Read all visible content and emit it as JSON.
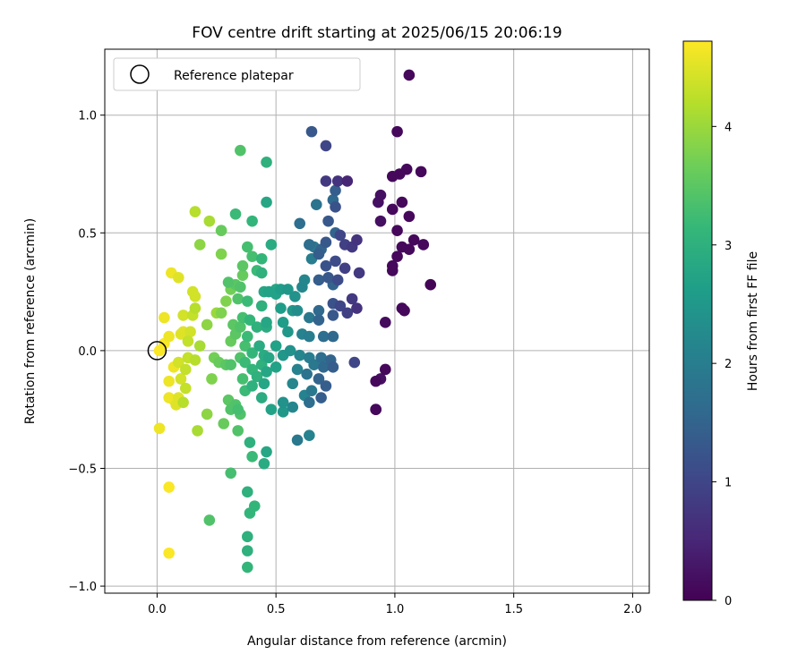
{
  "chart_data": {
    "type": "scatter",
    "title": "FOV centre drift starting at 2025/06/15 20:06:19",
    "xlabel": "Angular distance from reference (arcmin)",
    "ylabel": "Rotation from reference (arcmin)",
    "xlim": [
      -0.22,
      2.07
    ],
    "ylim": [
      -1.03,
      1.28
    ],
    "xticks": [
      0.0,
      0.5,
      1.0,
      1.5,
      2.0
    ],
    "xtick_labels": [
      "0.0",
      "0.5",
      "1.0",
      "1.5",
      "2.0"
    ],
    "yticks": [
      -1.0,
      -0.5,
      0.0,
      0.5,
      1.0
    ],
    "ytick_labels": [
      "−1.0",
      "−0.5",
      "0.0",
      "0.5",
      "1.0"
    ],
    "grid": true,
    "legend": {
      "position": "top-left",
      "entries": [
        "Reference platepar"
      ]
    },
    "reference_point": {
      "x": 0.0,
      "y": 0.0
    },
    "colorbar": {
      "label": "Hours from first FF file",
      "range": [
        0,
        4.72
      ],
      "ticks": [
        0,
        1,
        2,
        3,
        4
      ],
      "tick_labels": [
        "0",
        "1",
        "2",
        "3",
        "4"
      ],
      "colormap": "viridis"
    },
    "colors": {
      "grid": "#b0b0b0",
      "viridis": [
        "#440154",
        "#482878",
        "#3e4989",
        "#31688e",
        "#26828e",
        "#1f9e89",
        "#35b779",
        "#6ece58",
        "#b5de2b",
        "#fde725"
      ]
    },
    "points": [
      {
        "x": 1.06,
        "y": 1.17,
        "t": 0.1
      },
      {
        "x": 1.01,
        "y": 0.93,
        "t": 0.1
      },
      {
        "x": 1.11,
        "y": 0.76,
        "t": 0.1
      },
      {
        "x": 1.05,
        "y": 0.77,
        "t": 0.1
      },
      {
        "x": 1.02,
        "y": 0.75,
        "t": 0.1
      },
      {
        "x": 0.99,
        "y": 0.74,
        "t": 0.1
      },
      {
        "x": 0.94,
        "y": 0.66,
        "t": 0.2
      },
      {
        "x": 0.93,
        "y": 0.63,
        "t": 0.2
      },
      {
        "x": 1.03,
        "y": 0.63,
        "t": 0.1
      },
      {
        "x": 0.99,
        "y": 0.6,
        "t": 0.1
      },
      {
        "x": 1.06,
        "y": 0.57,
        "t": 0.1
      },
      {
        "x": 0.94,
        "y": 0.55,
        "t": 0.2
      },
      {
        "x": 1.01,
        "y": 0.51,
        "t": 0.1
      },
      {
        "x": 1.08,
        "y": 0.47,
        "t": 0.1
      },
      {
        "x": 1.12,
        "y": 0.45,
        "t": 0.1
      },
      {
        "x": 1.03,
        "y": 0.44,
        "t": 0.1
      },
      {
        "x": 1.06,
        "y": 0.43,
        "t": 0.1
      },
      {
        "x": 1.01,
        "y": 0.4,
        "t": 0.1
      },
      {
        "x": 0.99,
        "y": 0.36,
        "t": 0.1
      },
      {
        "x": 0.99,
        "y": 0.34,
        "t": 0.1
      },
      {
        "x": 1.15,
        "y": 0.28,
        "t": 0.05
      },
      {
        "x": 1.03,
        "y": 0.18,
        "t": 0.1
      },
      {
        "x": 1.04,
        "y": 0.17,
        "t": 0.1
      },
      {
        "x": 0.96,
        "y": 0.12,
        "t": 0.15
      },
      {
        "x": 0.96,
        "y": -0.08,
        "t": 0.1
      },
      {
        "x": 0.94,
        "y": -0.12,
        "t": 0.2
      },
      {
        "x": 0.92,
        "y": -0.13,
        "t": 0.1
      },
      {
        "x": 0.92,
        "y": -0.25,
        "t": 0.1
      },
      {
        "x": 0.92,
        "y": -0.25,
        "t": 0.1
      },
      {
        "x": 0.65,
        "y": 0.93,
        "t": 1.3
      },
      {
        "x": 0.71,
        "y": 0.87,
        "t": 1.0
      },
      {
        "x": 0.71,
        "y": 0.72,
        "t": 0.8
      },
      {
        "x": 0.76,
        "y": 0.72,
        "t": 0.7
      },
      {
        "x": 0.8,
        "y": 0.72,
        "t": 0.5
      },
      {
        "x": 0.75,
        "y": 0.68,
        "t": 1.4
      },
      {
        "x": 0.74,
        "y": 0.64,
        "t": 1.6
      },
      {
        "x": 0.67,
        "y": 0.62,
        "t": 1.8
      },
      {
        "x": 0.75,
        "y": 0.61,
        "t": 1.2
      },
      {
        "x": 0.6,
        "y": 0.54,
        "t": 1.7
      },
      {
        "x": 0.72,
        "y": 0.55,
        "t": 1.3
      },
      {
        "x": 0.77,
        "y": 0.49,
        "t": 1.0
      },
      {
        "x": 0.75,
        "y": 0.5,
        "t": 1.5
      },
      {
        "x": 0.84,
        "y": 0.47,
        "t": 0.7
      },
      {
        "x": 0.79,
        "y": 0.45,
        "t": 0.9
      },
      {
        "x": 0.82,
        "y": 0.44,
        "t": 0.8
      },
      {
        "x": 0.64,
        "y": 0.45,
        "t": 1.7
      },
      {
        "x": 0.66,
        "y": 0.44,
        "t": 1.9
      },
      {
        "x": 0.69,
        "y": 0.43,
        "t": 1.5
      },
      {
        "x": 0.71,
        "y": 0.46,
        "t": 1.3
      },
      {
        "x": 0.68,
        "y": 0.41,
        "t": 1.4
      },
      {
        "x": 0.65,
        "y": 0.39,
        "t": 2.0
      },
      {
        "x": 0.75,
        "y": 0.38,
        "t": 1.1
      },
      {
        "x": 0.71,
        "y": 0.36,
        "t": 1.2
      },
      {
        "x": 0.79,
        "y": 0.35,
        "t": 0.9
      },
      {
        "x": 0.85,
        "y": 0.33,
        "t": 0.8
      },
      {
        "x": 0.68,
        "y": 0.3,
        "t": 1.4
      },
      {
        "x": 0.72,
        "y": 0.31,
        "t": 1.3
      },
      {
        "x": 0.76,
        "y": 0.3,
        "t": 1.1
      },
      {
        "x": 0.74,
        "y": 0.28,
        "t": 1.5
      },
      {
        "x": 0.61,
        "y": 0.27,
        "t": 2.2
      },
      {
        "x": 0.82,
        "y": 0.22,
        "t": 0.8
      },
      {
        "x": 0.74,
        "y": 0.2,
        "t": 1.2
      },
      {
        "x": 0.77,
        "y": 0.19,
        "t": 1.0
      },
      {
        "x": 0.84,
        "y": 0.18,
        "t": 0.7
      },
      {
        "x": 0.8,
        "y": 0.16,
        "t": 0.9
      },
      {
        "x": 0.68,
        "y": 0.17,
        "t": 1.6
      },
      {
        "x": 0.74,
        "y": 0.15,
        "t": 1.3
      },
      {
        "x": 0.59,
        "y": 0.17,
        "t": 2.3
      },
      {
        "x": 0.64,
        "y": 0.14,
        "t": 1.9
      },
      {
        "x": 0.68,
        "y": 0.13,
        "t": 1.5
      },
      {
        "x": 0.61,
        "y": 0.07,
        "t": 2.1
      },
      {
        "x": 0.64,
        "y": 0.06,
        "t": 2.0
      },
      {
        "x": 0.7,
        "y": 0.06,
        "t": 1.7
      },
      {
        "x": 0.74,
        "y": 0.06,
        "t": 1.6
      },
      {
        "x": 0.56,
        "y": 0.0,
        "t": 2.4
      },
      {
        "x": 0.6,
        "y": -0.02,
        "t": 2.2
      },
      {
        "x": 0.64,
        "y": -0.03,
        "t": 2.0
      },
      {
        "x": 0.69,
        "y": -0.03,
        "t": 1.7
      },
      {
        "x": 0.73,
        "y": -0.04,
        "t": 1.5
      },
      {
        "x": 0.83,
        "y": -0.05,
        "t": 1.0
      },
      {
        "x": 0.66,
        "y": -0.06,
        "t": 1.9
      },
      {
        "x": 0.7,
        "y": -0.07,
        "t": 1.6
      },
      {
        "x": 0.74,
        "y": -0.07,
        "t": 1.4
      },
      {
        "x": 0.59,
        "y": -0.08,
        "t": 2.1
      },
      {
        "x": 0.63,
        "y": -0.1,
        "t": 1.8
      },
      {
        "x": 0.57,
        "y": -0.14,
        "t": 2.2
      },
      {
        "x": 0.68,
        "y": -0.12,
        "t": 1.5
      },
      {
        "x": 0.71,
        "y": -0.15,
        "t": 1.4
      },
      {
        "x": 0.65,
        "y": -0.17,
        "t": 1.9
      },
      {
        "x": 0.62,
        "y": -0.19,
        "t": 2.1
      },
      {
        "x": 0.69,
        "y": -0.2,
        "t": 1.4
      },
      {
        "x": 0.64,
        "y": -0.22,
        "t": 1.7
      },
      {
        "x": 0.53,
        "y": -0.22,
        "t": 2.4
      },
      {
        "x": 0.57,
        "y": -0.24,
        "t": 2.2
      },
      {
        "x": 0.53,
        "y": -0.26,
        "t": 2.5
      },
      {
        "x": 0.59,
        "y": -0.38,
        "t": 1.9
      },
      {
        "x": 0.64,
        "y": -0.36,
        "t": 2.1
      },
      {
        "x": 0.35,
        "y": 0.85,
        "t": 3.4
      },
      {
        "x": 0.46,
        "y": 0.8,
        "t": 3.0
      },
      {
        "x": 0.46,
        "y": 0.63,
        "t": 2.8
      },
      {
        "x": 0.33,
        "y": 0.58,
        "t": 3.2
      },
      {
        "x": 0.4,
        "y": 0.55,
        "t": 3.1
      },
      {
        "x": 0.27,
        "y": 0.51,
        "t": 3.6
      },
      {
        "x": 0.48,
        "y": 0.45,
        "t": 2.9
      },
      {
        "x": 0.38,
        "y": 0.44,
        "t": 3.3
      },
      {
        "x": 0.4,
        "y": 0.4,
        "t": 3.3
      },
      {
        "x": 0.44,
        "y": 0.39,
        "t": 3.1
      },
      {
        "x": 0.36,
        "y": 0.36,
        "t": 3.5
      },
      {
        "x": 0.42,
        "y": 0.34,
        "t": 3.2
      },
      {
        "x": 0.44,
        "y": 0.33,
        "t": 3.0
      },
      {
        "x": 0.36,
        "y": 0.32,
        "t": 3.6
      },
      {
        "x": 0.3,
        "y": 0.29,
        "t": 3.4
      },
      {
        "x": 0.33,
        "y": 0.28,
        "t": 3.5
      },
      {
        "x": 0.35,
        "y": 0.27,
        "t": 3.4
      },
      {
        "x": 0.31,
        "y": 0.26,
        "t": 3.7
      },
      {
        "x": 0.45,
        "y": 0.25,
        "t": 2.8
      },
      {
        "x": 0.47,
        "y": 0.25,
        "t": 2.7
      },
      {
        "x": 0.5,
        "y": 0.26,
        "t": 2.8
      },
      {
        "x": 0.52,
        "y": 0.26,
        "t": 2.6
      },
      {
        "x": 0.55,
        "y": 0.26,
        "t": 2.5
      },
      {
        "x": 0.5,
        "y": 0.24,
        "t": 2.7
      },
      {
        "x": 0.58,
        "y": 0.23,
        "t": 2.4
      },
      {
        "x": 0.62,
        "y": 0.3,
        "t": 2.2
      },
      {
        "x": 0.34,
        "y": 0.22,
        "t": 3.4
      },
      {
        "x": 0.38,
        "y": 0.21,
        "t": 3.2
      },
      {
        "x": 0.44,
        "y": 0.19,
        "t": 3.0
      },
      {
        "x": 0.52,
        "y": 0.18,
        "t": 2.6
      },
      {
        "x": 0.57,
        "y": 0.17,
        "t": 2.5
      },
      {
        "x": 0.27,
        "y": 0.16,
        "t": 3.8
      },
      {
        "x": 0.36,
        "y": 0.14,
        "t": 3.3
      },
      {
        "x": 0.39,
        "y": 0.13,
        "t": 3.1
      },
      {
        "x": 0.46,
        "y": 0.12,
        "t": 2.8
      },
      {
        "x": 0.53,
        "y": 0.12,
        "t": 2.6
      },
      {
        "x": 0.32,
        "y": 0.11,
        "t": 3.5
      },
      {
        "x": 0.35,
        "y": 0.1,
        "t": 3.4
      },
      {
        "x": 0.42,
        "y": 0.1,
        "t": 3.0
      },
      {
        "x": 0.46,
        "y": 0.1,
        "t": 2.9
      },
      {
        "x": 0.55,
        "y": 0.08,
        "t": 2.5
      },
      {
        "x": 0.33,
        "y": 0.07,
        "t": 3.5
      },
      {
        "x": 0.38,
        "y": 0.06,
        "t": 3.2
      },
      {
        "x": 0.31,
        "y": 0.04,
        "t": 3.6
      },
      {
        "x": 0.43,
        "y": 0.02,
        "t": 2.9
      },
      {
        "x": 0.5,
        "y": 0.02,
        "t": 2.7
      },
      {
        "x": 0.37,
        "y": 0.02,
        "t": 3.3
      },
      {
        "x": 0.53,
        "y": -0.02,
        "t": 2.5
      },
      {
        "x": 0.4,
        "y": -0.01,
        "t": 3.1
      },
      {
        "x": 0.45,
        "y": -0.02,
        "t": 2.9
      },
      {
        "x": 0.47,
        "y": -0.03,
        "t": 2.8
      },
      {
        "x": 0.35,
        "y": -0.03,
        "t": 3.4
      },
      {
        "x": 0.24,
        "y": -0.03,
        "t": 3.7
      },
      {
        "x": 0.26,
        "y": -0.05,
        "t": 3.6
      },
      {
        "x": 0.37,
        "y": -0.05,
        "t": 3.2
      },
      {
        "x": 0.29,
        "y": -0.06,
        "t": 3.5
      },
      {
        "x": 0.31,
        "y": -0.06,
        "t": 3.4
      },
      {
        "x": 0.44,
        "y": -0.06,
        "t": 3.0
      },
      {
        "x": 0.5,
        "y": -0.07,
        "t": 2.7
      },
      {
        "x": 0.4,
        "y": -0.08,
        "t": 3.1
      },
      {
        "x": 0.46,
        "y": -0.09,
        "t": 2.8
      },
      {
        "x": 0.42,
        "y": -0.11,
        "t": 3.0
      },
      {
        "x": 0.36,
        "y": -0.12,
        "t": 3.3
      },
      {
        "x": 0.45,
        "y": -0.14,
        "t": 2.8
      },
      {
        "x": 0.4,
        "y": -0.15,
        "t": 3.0
      },
      {
        "x": 0.37,
        "y": -0.17,
        "t": 3.2
      },
      {
        "x": 0.3,
        "y": -0.21,
        "t": 3.5
      },
      {
        "x": 0.33,
        "y": -0.23,
        "t": 3.4
      },
      {
        "x": 0.44,
        "y": -0.2,
        "t": 2.9
      },
      {
        "x": 0.34,
        "y": -0.25,
        "t": 3.3
      },
      {
        "x": 0.31,
        "y": -0.25,
        "t": 3.4
      },
      {
        "x": 0.48,
        "y": -0.25,
        "t": 2.7
      },
      {
        "x": 0.35,
        "y": -0.27,
        "t": 3.4
      },
      {
        "x": 0.28,
        "y": -0.31,
        "t": 3.6
      },
      {
        "x": 0.34,
        "y": -0.34,
        "t": 3.4
      },
      {
        "x": 0.39,
        "y": -0.39,
        "t": 3.0
      },
      {
        "x": 0.46,
        "y": -0.43,
        "t": 2.8
      },
      {
        "x": 0.4,
        "y": -0.45,
        "t": 3.2
      },
      {
        "x": 0.45,
        "y": -0.48,
        "t": 2.9
      },
      {
        "x": 0.31,
        "y": -0.52,
        "t": 3.3
      },
      {
        "x": 0.38,
        "y": -0.6,
        "t": 3.0
      },
      {
        "x": 0.41,
        "y": -0.66,
        "t": 3.1
      },
      {
        "x": 0.39,
        "y": -0.69,
        "t": 3.1
      },
      {
        "x": 0.38,
        "y": -0.79,
        "t": 3.0
      },
      {
        "x": 0.38,
        "y": -0.85,
        "t": 3.0
      },
      {
        "x": 0.38,
        "y": -0.92,
        "t": 3.1
      },
      {
        "x": 0.22,
        "y": -0.72,
        "t": 3.4
      },
      {
        "x": 0.16,
        "y": 0.59,
        "t": 4.2
      },
      {
        "x": 0.22,
        "y": 0.55,
        "t": 4.1
      },
      {
        "x": 0.27,
        "y": 0.51,
        "t": 3.9
      },
      {
        "x": 0.18,
        "y": 0.45,
        "t": 3.9
      },
      {
        "x": 0.27,
        "y": 0.41,
        "t": 3.8
      },
      {
        "x": 0.06,
        "y": 0.33,
        "t": 4.6
      },
      {
        "x": 0.09,
        "y": 0.31,
        "t": 4.5
      },
      {
        "x": 0.15,
        "y": 0.25,
        "t": 4.4
      },
      {
        "x": 0.16,
        "y": 0.23,
        "t": 4.4
      },
      {
        "x": 0.29,
        "y": 0.21,
        "t": 3.8
      },
      {
        "x": 0.25,
        "y": 0.16,
        "t": 4.0
      },
      {
        "x": 0.11,
        "y": 0.15,
        "t": 4.4
      },
      {
        "x": 0.16,
        "y": 0.18,
        "t": 4.2
      },
      {
        "x": 0.15,
        "y": 0.15,
        "t": 4.3
      },
      {
        "x": 0.03,
        "y": 0.14,
        "t": 4.6
      },
      {
        "x": 0.21,
        "y": 0.11,
        "t": 3.9
      },
      {
        "x": 0.11,
        "y": 0.08,
        "t": 4.5
      },
      {
        "x": 0.1,
        "y": 0.07,
        "t": 4.5
      },
      {
        "x": 0.14,
        "y": 0.08,
        "t": 4.4
      },
      {
        "x": 0.05,
        "y": 0.06,
        "t": 4.6
      },
      {
        "x": 0.13,
        "y": 0.04,
        "t": 4.3
      },
      {
        "x": 0.03,
        "y": 0.03,
        "t": 4.7
      },
      {
        "x": 0.18,
        "y": 0.02,
        "t": 4.1
      },
      {
        "x": 0.01,
        "y": 0.0,
        "t": 4.7
      },
      {
        "x": 0.13,
        "y": -0.03,
        "t": 4.3
      },
      {
        "x": 0.16,
        "y": -0.04,
        "t": 4.2
      },
      {
        "x": 0.09,
        "y": -0.05,
        "t": 4.4
      },
      {
        "x": 0.07,
        "y": -0.07,
        "t": 4.6
      },
      {
        "x": 0.12,
        "y": -0.08,
        "t": 4.3
      },
      {
        "x": 0.05,
        "y": -0.13,
        "t": 4.6
      },
      {
        "x": 0.1,
        "y": -0.12,
        "t": 4.4
      },
      {
        "x": 0.23,
        "y": -0.12,
        "t": 3.8
      },
      {
        "x": 0.12,
        "y": -0.16,
        "t": 4.3
      },
      {
        "x": 0.05,
        "y": -0.2,
        "t": 4.6
      },
      {
        "x": 0.09,
        "y": -0.2,
        "t": 4.5
      },
      {
        "x": 0.07,
        "y": -0.21,
        "t": 4.6
      },
      {
        "x": 0.11,
        "y": -0.22,
        "t": 4.2
      },
      {
        "x": 0.08,
        "y": -0.23,
        "t": 4.5
      },
      {
        "x": 0.21,
        "y": -0.27,
        "t": 3.9
      },
      {
        "x": 0.17,
        "y": -0.34,
        "t": 4.1
      },
      {
        "x": 0.01,
        "y": -0.33,
        "t": 4.6
      },
      {
        "x": 0.05,
        "y": -0.58,
        "t": 4.7
      },
      {
        "x": 0.05,
        "y": -0.86,
        "t": 4.7
      }
    ]
  }
}
